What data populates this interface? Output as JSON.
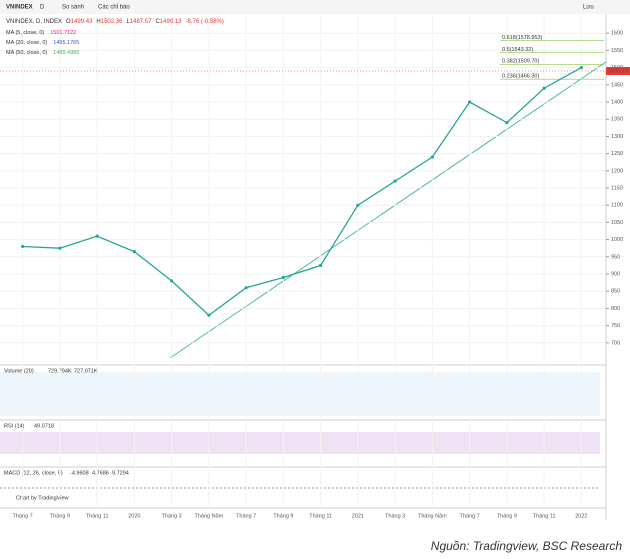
{
  "toolbar": {
    "symbol": "VNINDEX",
    "interval": "D",
    "compare": "So sánh",
    "indicators": "Các chỉ báo",
    "save": "Lưu"
  },
  "chart_data": {
    "type": "line",
    "title": "VNINDEX, D, INDEX",
    "quote": [
      {
        "label": "O",
        "value": 1499.43
      },
      {
        "label": "H",
        "value": 1502.36
      },
      {
        "label": "L",
        "value": 1487.57
      },
      {
        "label": "C",
        "value": 1490.13
      }
    ],
    "change": "-8.76 (-0.58%)",
    "moving_averages": [
      {
        "name": "MA (5, close, 0)",
        "value": 1501.7122,
        "color": "#e91e63"
      },
      {
        "name": "MA (20, close, 0)",
        "value": 1495.1765,
        "color": "#3f51b5"
      },
      {
        "name": "MA (50, close, 0)",
        "value": 1489.4986,
        "color": "#4caf50"
      }
    ],
    "fib_levels": [
      {
        "label": "0.618(1578.953)",
        "value": 1578.953
      },
      {
        "label": "0.5(1543.32)",
        "value": 1543.32
      },
      {
        "label": "0.382(1509.70)",
        "value": 1509.7
      },
      {
        "label": "0.236(1466.30)",
        "value": 1466.3
      }
    ],
    "categories": [
      "Tháng 7",
      "Tháng 9",
      "Tháng 11",
      "2020",
      "Tháng 3",
      "Tháng Năm",
      "Tháng 7",
      "Tháng 9",
      "Tháng 11",
      "2021",
      "Tháng 3",
      "Tháng Năm",
      "Tháng 7",
      "Tháng 9",
      "Tháng 11",
      "2022"
    ],
    "values": [
      980,
      975,
      1010,
      965,
      880,
      780,
      860,
      890,
      925,
      1100,
      1170,
      1240,
      1400,
      1340,
      1440,
      1500
    ],
    "color": "#26a69a",
    "last_price": 1490.13,
    "ylim": [
      650,
      1650
    ],
    "yticks": [
      700,
      750,
      800,
      850,
      900,
      950,
      1000,
      1050,
      1100,
      1150,
      1200,
      1250,
      1300,
      1350,
      1400,
      1450,
      1500,
      1550,
      1600
    ],
    "grid": true
  },
  "panels": {
    "volume": {
      "name": "Volume (20)",
      "values": [
        "729.794K",
        "727.071K"
      ]
    },
    "rsi": {
      "name": "RSI (14)",
      "values": [
        "49.0718"
      ]
    },
    "macd": {
      "name": "MACD (12, 26, close, 9)",
      "values": [
        "-4.9608",
        "4.7686",
        "9.7294"
      ],
      "credit": "Chart by TradingView"
    }
  },
  "source": "Nguồn: Tradingview, BSC Research"
}
